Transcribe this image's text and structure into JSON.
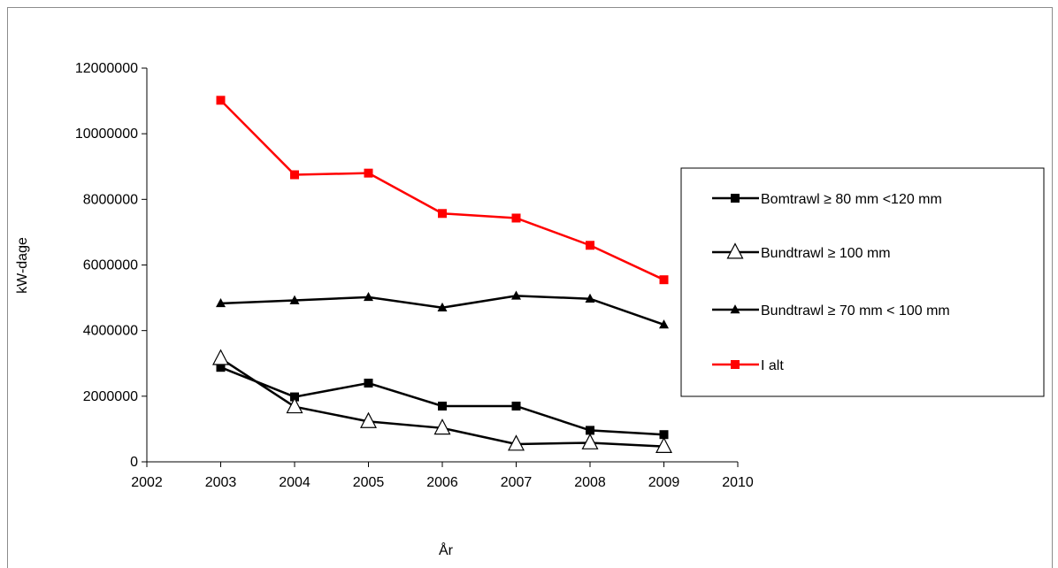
{
  "chart_data": {
    "type": "line",
    "title": "",
    "xlabel": "År",
    "ylabel": "kW-dage",
    "xlim": [
      2002,
      2010
    ],
    "ylim": [
      0,
      12000000
    ],
    "x_ticks": [
      2002,
      2003,
      2004,
      2005,
      2006,
      2007,
      2008,
      2009,
      2010
    ],
    "y_ticks": [
      0,
      2000000,
      4000000,
      6000000,
      8000000,
      10000000,
      12000000
    ],
    "x_tick_labels": [
      "2002",
      "2003",
      "2004",
      "2005",
      "2006",
      "2007",
      "2008",
      "2009",
      "2010"
    ],
    "y_tick_labels": [
      "0",
      "2000000",
      "4000000",
      "6000000",
      "8000000",
      "10000000",
      "12000000"
    ],
    "grid": false,
    "legend_position": "right",
    "x": [
      2003,
      2004,
      2005,
      2006,
      2007,
      2008,
      2009
    ],
    "series": [
      {
        "name": "Bomtrawl  ≥ 80 mm <120 mm",
        "values": [
          2880000,
          1980000,
          2400000,
          1700000,
          1700000,
          960000,
          830000
        ],
        "color": "#000000",
        "marker": "square-filled"
      },
      {
        "name": "Bundtrawl ≥ 100 mm",
        "values": [
          3150000,
          1680000,
          1230000,
          1030000,
          540000,
          580000,
          470000
        ],
        "color": "#000000",
        "marker": "triangle-open"
      },
      {
        "name": "Bundtrawl ≥ 70 mm < 100 mm",
        "values": [
          4830000,
          4920000,
          5020000,
          4700000,
          5060000,
          4970000,
          4180000
        ],
        "color": "#000000",
        "marker": "triangle-filled"
      },
      {
        "name": "I alt",
        "values": [
          11020000,
          8750000,
          8800000,
          7570000,
          7430000,
          6600000,
          5550000
        ],
        "color": "#ff0000",
        "marker": "square-filled"
      }
    ]
  }
}
